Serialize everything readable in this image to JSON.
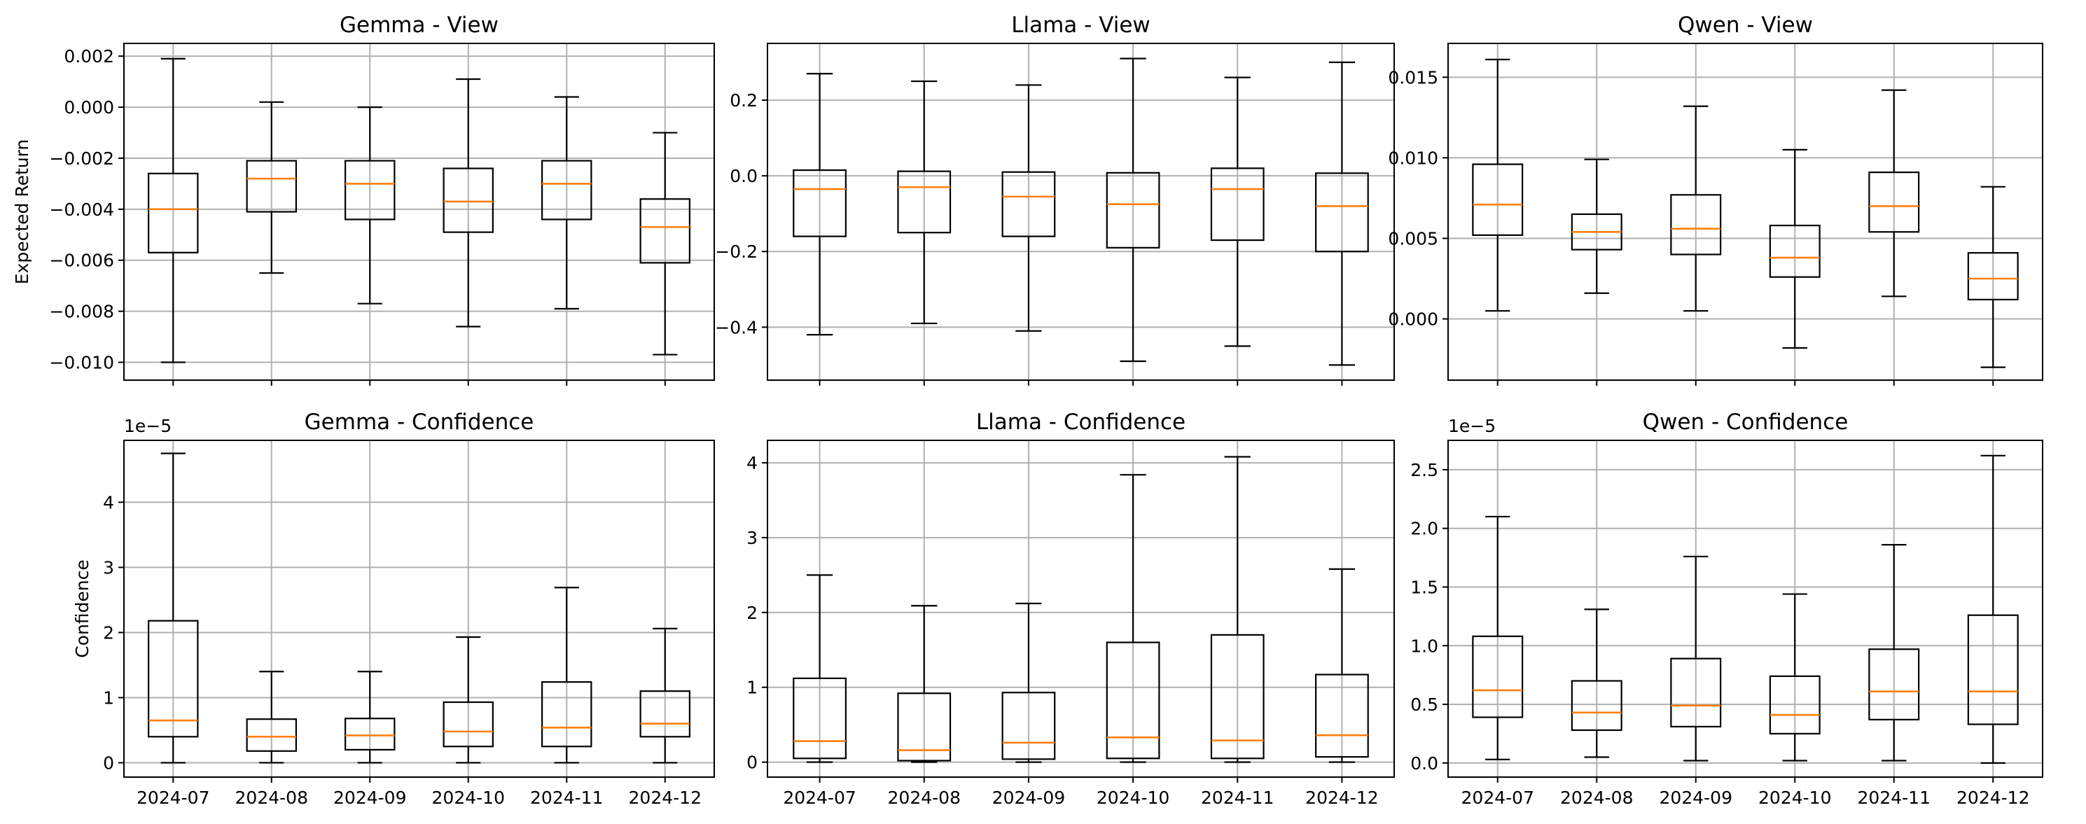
{
  "figure": {
    "categories": [
      "2024-07",
      "2024-08",
      "2024-09",
      "2024-10",
      "2024-11",
      "2024-12"
    ]
  },
  "chart_data": [
    {
      "type": "box",
      "title": "Gemma - View",
      "ylabel": "Expected Return",
      "yoffset": "",
      "ylim": [
        -0.0107,
        0.0025
      ],
      "yticks": [
        -0.01,
        -0.008,
        -0.006,
        -0.004,
        -0.002,
        0.0,
        0.002
      ],
      "yticklabels": [
        "−0.010",
        "−0.008",
        "−0.006",
        "−0.004",
        "−0.002",
        "0.000",
        "0.002"
      ],
      "show_xticklabels": false,
      "grid": true,
      "boxes": [
        {
          "whislo": -0.01,
          "q1": -0.0057,
          "med": -0.004,
          "q3": -0.0026,
          "whishi": 0.0019
        },
        {
          "whislo": -0.0065,
          "q1": -0.0041,
          "med": -0.0028,
          "q3": -0.0021,
          "whishi": 0.0002
        },
        {
          "whislo": -0.0077,
          "q1": -0.0044,
          "med": -0.003,
          "q3": -0.0021,
          "whishi": 0.0
        },
        {
          "whislo": -0.0086,
          "q1": -0.0049,
          "med": -0.0037,
          "q3": -0.0024,
          "whishi": 0.0011
        },
        {
          "whislo": -0.0079,
          "q1": -0.0044,
          "med": -0.003,
          "q3": -0.0021,
          "whishi": 0.0004
        },
        {
          "whislo": -0.0097,
          "q1": -0.0061,
          "med": -0.0047,
          "q3": -0.0036,
          "whishi": -0.001
        }
      ]
    },
    {
      "type": "box",
      "title": "Llama - View",
      "ylabel": "",
      "yoffset": "",
      "ylim": [
        -0.54,
        0.35
      ],
      "yticks": [
        -0.4,
        -0.2,
        0.0,
        0.2
      ],
      "yticklabels": [
        "−0.4",
        "−0.2",
        "0.0",
        "0.2"
      ],
      "show_xticklabels": false,
      "grid": true,
      "boxes": [
        {
          "whislo": -0.42,
          "q1": -0.16,
          "med": -0.035,
          "q3": 0.015,
          "whishi": 0.27
        },
        {
          "whislo": -0.39,
          "q1": -0.15,
          "med": -0.03,
          "q3": 0.012,
          "whishi": 0.25
        },
        {
          "whislo": -0.41,
          "q1": -0.16,
          "med": -0.055,
          "q3": 0.01,
          "whishi": 0.24
        },
        {
          "whislo": -0.49,
          "q1": -0.19,
          "med": -0.075,
          "q3": 0.008,
          "whishi": 0.31
        },
        {
          "whislo": -0.45,
          "q1": -0.17,
          "med": -0.035,
          "q3": 0.02,
          "whishi": 0.26
        },
        {
          "whislo": -0.5,
          "q1": -0.2,
          "med": -0.08,
          "q3": 0.007,
          "whishi": 0.3
        }
      ]
    },
    {
      "type": "box",
      "title": "Qwen - View",
      "ylabel": "",
      "yoffset": "",
      "ylim": [
        -0.0038,
        0.0171
      ],
      "yticks": [
        0.0,
        0.005,
        0.01,
        0.015
      ],
      "yticklabels": [
        "0.000",
        "0.005",
        "0.010",
        "0.015"
      ],
      "show_xticklabels": false,
      "grid": true,
      "boxes": [
        {
          "whislo": 0.0005,
          "q1": 0.0052,
          "med": 0.0071,
          "q3": 0.0096,
          "whishi": 0.0161
        },
        {
          "whislo": 0.0016,
          "q1": 0.0043,
          "med": 0.0054,
          "q3": 0.0065,
          "whishi": 0.0099
        },
        {
          "whislo": 0.0005,
          "q1": 0.004,
          "med": 0.0056,
          "q3": 0.0077,
          "whishi": 0.0132
        },
        {
          "whislo": -0.0018,
          "q1": 0.0026,
          "med": 0.0038,
          "q3": 0.0058,
          "whishi": 0.0105
        },
        {
          "whislo": 0.0014,
          "q1": 0.0054,
          "med": 0.007,
          "q3": 0.0091,
          "whishi": 0.0142
        },
        {
          "whislo": -0.003,
          "q1": 0.0012,
          "med": 0.0025,
          "q3": 0.0041,
          "whishi": 0.0082
        }
      ]
    },
    {
      "type": "box",
      "title": "Gemma - Confidence",
      "ylabel": "Confidence",
      "yoffset": "1e−5",
      "ylim": [
        -0.22,
        4.95
      ],
      "yticks": [
        0,
        1,
        2,
        3,
        4
      ],
      "yticklabels": [
        "0",
        "1",
        "2",
        "3",
        "4"
      ],
      "show_xticklabels": true,
      "grid": true,
      "boxes": [
        {
          "whislo": 0.0,
          "q1": 0.4,
          "med": 0.65,
          "q3": 2.18,
          "whishi": 4.75
        },
        {
          "whislo": 0.0,
          "q1": 0.18,
          "med": 0.4,
          "q3": 0.67,
          "whishi": 1.4
        },
        {
          "whislo": 0.0,
          "q1": 0.2,
          "med": 0.42,
          "q3": 0.68,
          "whishi": 1.4
        },
        {
          "whislo": 0.0,
          "q1": 0.25,
          "med": 0.48,
          "q3": 0.93,
          "whishi": 1.93
        },
        {
          "whislo": 0.0,
          "q1": 0.25,
          "med": 0.54,
          "q3": 1.24,
          "whishi": 2.69
        },
        {
          "whislo": 0.0,
          "q1": 0.4,
          "med": 0.6,
          "q3": 1.1,
          "whishi": 2.06
        }
      ]
    },
    {
      "type": "box",
      "title": "Llama - Confidence",
      "ylabel": "",
      "yoffset": "",
      "ylim": [
        -0.2,
        4.3
      ],
      "yticks": [
        0,
        1,
        2,
        3,
        4
      ],
      "yticklabels": [
        "0",
        "1",
        "2",
        "3",
        "4"
      ],
      "show_xticklabels": true,
      "grid": true,
      "boxes": [
        {
          "whislo": 0.0,
          "q1": 0.05,
          "med": 0.28,
          "q3": 1.12,
          "whishi": 2.5
        },
        {
          "whislo": 0.0,
          "q1": 0.02,
          "med": 0.16,
          "q3": 0.92,
          "whishi": 2.09
        },
        {
          "whislo": 0.0,
          "q1": 0.04,
          "med": 0.26,
          "q3": 0.93,
          "whishi": 2.12
        },
        {
          "whislo": 0.0,
          "q1": 0.05,
          "med": 0.33,
          "q3": 1.6,
          "whishi": 3.84
        },
        {
          "whislo": 0.0,
          "q1": 0.05,
          "med": 0.29,
          "q3": 1.7,
          "whishi": 4.08
        },
        {
          "whislo": 0.0,
          "q1": 0.07,
          "med": 0.36,
          "q3": 1.17,
          "whishi": 2.58
        }
      ]
    },
    {
      "type": "box",
      "title": "Qwen - Confidence",
      "ylabel": "",
      "yoffset": "1e−5",
      "ylim": [
        -0.12,
        2.75
      ],
      "yticks": [
        0.0,
        0.5,
        1.0,
        1.5,
        2.0,
        2.5
      ],
      "yticklabels": [
        "0.0",
        "0.5",
        "1.0",
        "1.5",
        "2.0",
        "2.5"
      ],
      "show_xticklabels": true,
      "grid": true,
      "boxes": [
        {
          "whislo": 0.03,
          "q1": 0.39,
          "med": 0.62,
          "q3": 1.08,
          "whishi": 2.1
        },
        {
          "whislo": 0.05,
          "q1": 0.28,
          "med": 0.43,
          "q3": 0.7,
          "whishi": 1.31
        },
        {
          "whislo": 0.02,
          "q1": 0.31,
          "med": 0.49,
          "q3": 0.89,
          "whishi": 1.76
        },
        {
          "whislo": 0.02,
          "q1": 0.25,
          "med": 0.41,
          "q3": 0.74,
          "whishi": 1.44
        },
        {
          "whislo": 0.02,
          "q1": 0.37,
          "med": 0.61,
          "q3": 0.97,
          "whishi": 1.86
        },
        {
          "whislo": 0.0,
          "q1": 0.33,
          "med": 0.61,
          "q3": 1.26,
          "whishi": 2.62
        }
      ]
    }
  ]
}
